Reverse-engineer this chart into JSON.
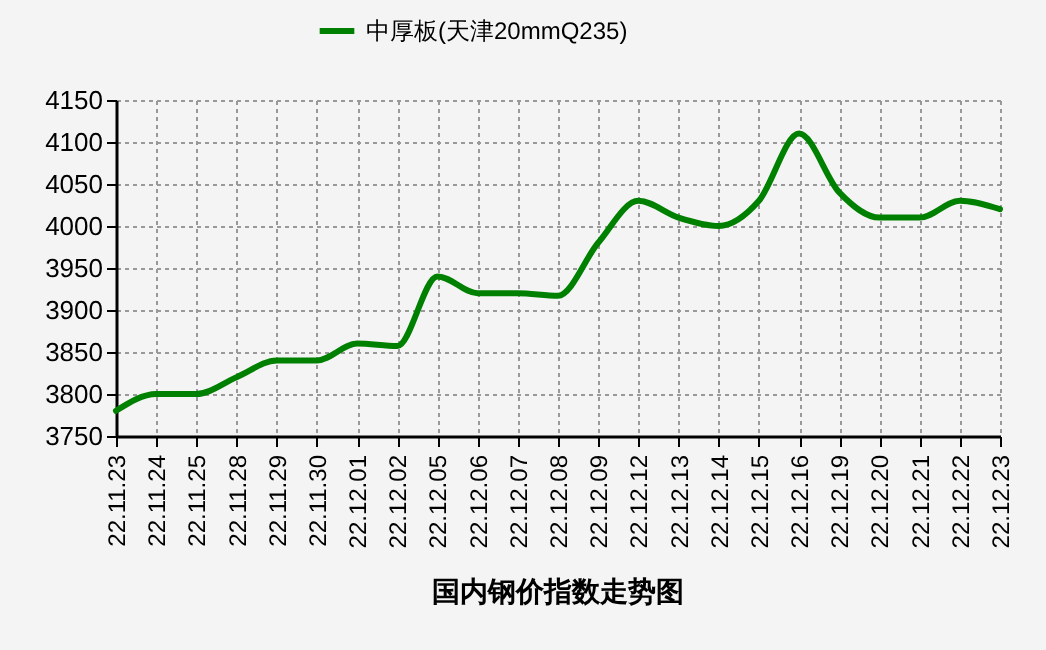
{
  "chart_data": {
    "type": "line",
    "title": "国内钢价指数走势图",
    "categories": [
      "22.11.23",
      "22.11.24",
      "22.11.25",
      "22.11.28",
      "22.11.29",
      "22.11.30",
      "22.12.01",
      "22.12.02",
      "22.12.05",
      "22.12.06",
      "22.12.07",
      "22.12.08",
      "22.12.09",
      "22.12.12",
      "22.12.13",
      "22.12.14",
      "22.12.15",
      "22.12.16",
      "22.12.19",
      "22.12.20",
      "22.12.21",
      "22.12.22",
      "22.12.23"
    ],
    "series": [
      {
        "name": "中厚板(天津20mmQ235)",
        "color": "#008000",
        "values": [
          3780,
          3800,
          3800,
          3820,
          3840,
          3840,
          3860,
          3857,
          3940,
          3920,
          3920,
          3917,
          3980,
          4030,
          4010,
          4000,
          4030,
          4110,
          4040,
          4010,
          4010,
          4030,
          4020
        ]
      }
    ],
    "ylim": [
      3750,
      4150
    ],
    "yticks": [
      3750,
      3800,
      3850,
      3900,
      3950,
      4000,
      4050,
      4100,
      4150
    ],
    "grid": true,
    "legend": "top"
  }
}
